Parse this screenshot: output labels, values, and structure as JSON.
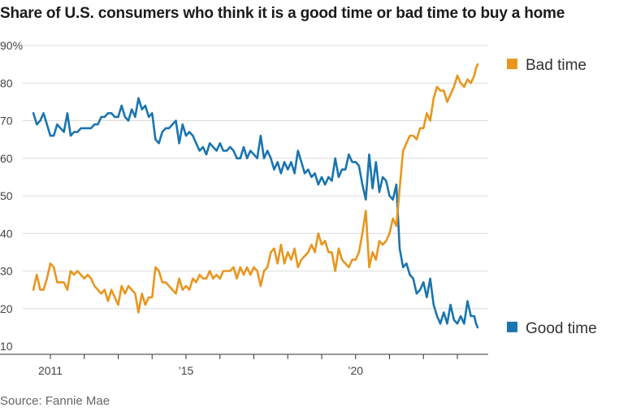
{
  "title": "Share of U.S. consumers who think it is a good time or bad time to buy a home",
  "source": "Source: Fannie Mae",
  "chart_data": {
    "type": "line",
    "x_range": [
      2010.0,
      2023.667
    ],
    "ylim": [
      10,
      90
    ],
    "grid": true,
    "legend": "right",
    "y_ticks": [
      {
        "value": 10,
        "label": "10"
      },
      {
        "value": 20,
        "label": "20"
      },
      {
        "value": 30,
        "label": "30"
      },
      {
        "value": 40,
        "label": "40"
      },
      {
        "value": 50,
        "label": "50"
      },
      {
        "value": 60,
        "label": "60"
      },
      {
        "value": 70,
        "label": "70"
      },
      {
        "value": 80,
        "label": "80"
      },
      {
        "value": 90,
        "label": "90%"
      }
    ],
    "x_ticks": [
      {
        "value": 2011,
        "label": "2011"
      },
      {
        "value": 2012,
        "label": ""
      },
      {
        "value": 2013,
        "label": ""
      },
      {
        "value": 2014,
        "label": ""
      },
      {
        "value": 2015,
        "label": "’15"
      },
      {
        "value": 2016,
        "label": ""
      },
      {
        "value": 2017,
        "label": ""
      },
      {
        "value": 2018,
        "label": ""
      },
      {
        "value": 2019,
        "label": ""
      },
      {
        "value": 2020,
        "label": "’20"
      },
      {
        "value": 2021,
        "label": ""
      },
      {
        "value": 2022,
        "label": ""
      },
      {
        "value": 2023,
        "label": ""
      }
    ],
    "series": [
      {
        "name": "Good time",
        "color": "#1a75b0",
        "points": [
          [
            2010.5,
            72
          ],
          [
            2010.6,
            69
          ],
          [
            2010.7,
            70
          ],
          [
            2010.8,
            72
          ],
          [
            2010.9,
            69
          ],
          [
            2011.0,
            66
          ],
          [
            2011.1,
            66
          ],
          [
            2011.2,
            69
          ],
          [
            2011.3,
            68
          ],
          [
            2011.4,
            67
          ],
          [
            2011.5,
            72
          ],
          [
            2011.6,
            66
          ],
          [
            2011.7,
            67
          ],
          [
            2011.8,
            67
          ],
          [
            2011.9,
            68
          ],
          [
            2012.0,
            68
          ],
          [
            2012.1,
            68
          ],
          [
            2012.2,
            68
          ],
          [
            2012.3,
            69
          ],
          [
            2012.4,
            69
          ],
          [
            2012.5,
            71
          ],
          [
            2012.6,
            71
          ],
          [
            2012.7,
            72
          ],
          [
            2012.8,
            72
          ],
          [
            2012.9,
            71
          ],
          [
            2013.0,
            71
          ],
          [
            2013.1,
            74
          ],
          [
            2013.2,
            71
          ],
          [
            2013.3,
            70
          ],
          [
            2013.4,
            73
          ],
          [
            2013.5,
            71
          ],
          [
            2013.6,
            76
          ],
          [
            2013.7,
            73
          ],
          [
            2013.8,
            74
          ],
          [
            2013.9,
            71
          ],
          [
            2014.0,
            72
          ],
          [
            2014.1,
            65
          ],
          [
            2014.2,
            64
          ],
          [
            2014.3,
            67
          ],
          [
            2014.4,
            68
          ],
          [
            2014.5,
            68
          ],
          [
            2014.6,
            69
          ],
          [
            2014.7,
            70
          ],
          [
            2014.8,
            64
          ],
          [
            2014.9,
            69
          ],
          [
            2015.0,
            66
          ],
          [
            2015.1,
            67
          ],
          [
            2015.2,
            66
          ],
          [
            2015.3,
            64
          ],
          [
            2015.4,
            62
          ],
          [
            2015.5,
            63
          ],
          [
            2015.6,
            61
          ],
          [
            2015.7,
            64
          ],
          [
            2015.8,
            63
          ],
          [
            2015.9,
            62
          ],
          [
            2016.0,
            64
          ],
          [
            2016.1,
            62
          ],
          [
            2016.2,
            62
          ],
          [
            2016.3,
            63
          ],
          [
            2016.4,
            62
          ],
          [
            2016.5,
            60
          ],
          [
            2016.6,
            60
          ],
          [
            2016.7,
            63
          ],
          [
            2016.8,
            60
          ],
          [
            2016.9,
            62
          ],
          [
            2017.0,
            61
          ],
          [
            2017.1,
            60
          ],
          [
            2017.2,
            66
          ],
          [
            2017.3,
            60
          ],
          [
            2017.4,
            62
          ],
          [
            2017.5,
            60
          ],
          [
            2017.6,
            57
          ],
          [
            2017.7,
            59
          ],
          [
            2017.8,
            56
          ],
          [
            2017.9,
            59
          ],
          [
            2018.0,
            57
          ],
          [
            2018.1,
            59
          ],
          [
            2018.2,
            56
          ],
          [
            2018.3,
            62
          ],
          [
            2018.4,
            59
          ],
          [
            2018.5,
            56
          ],
          [
            2018.6,
            57
          ],
          [
            2018.7,
            55
          ],
          [
            2018.8,
            56
          ],
          [
            2018.9,
            53
          ],
          [
            2019.0,
            55
          ],
          [
            2019.1,
            53
          ],
          [
            2019.2,
            55
          ],
          [
            2019.3,
            54
          ],
          [
            2019.4,
            60
          ],
          [
            2019.5,
            55
          ],
          [
            2019.6,
            57
          ],
          [
            2019.7,
            57
          ],
          [
            2019.8,
            61
          ],
          [
            2019.9,
            59
          ],
          [
            2020.0,
            59
          ],
          [
            2020.1,
            58
          ],
          [
            2020.2,
            53
          ],
          [
            2020.3,
            49
          ],
          [
            2020.4,
            61
          ],
          [
            2020.5,
            52
          ],
          [
            2020.6,
            59
          ],
          [
            2020.7,
            51
          ],
          [
            2020.8,
            55
          ],
          [
            2020.9,
            54
          ],
          [
            2021.0,
            50
          ],
          [
            2021.1,
            49
          ],
          [
            2021.2,
            53
          ],
          [
            2021.3,
            36
          ],
          [
            2021.4,
            31
          ],
          [
            2021.5,
            32
          ],
          [
            2021.6,
            29
          ],
          [
            2021.7,
            28
          ],
          [
            2021.8,
            24
          ],
          [
            2021.9,
            25
          ],
          [
            2022.0,
            27
          ],
          [
            2022.1,
            23
          ],
          [
            2022.2,
            28
          ],
          [
            2022.3,
            21
          ],
          [
            2022.4,
            18
          ],
          [
            2022.5,
            16
          ],
          [
            2022.6,
            19
          ],
          [
            2022.7,
            16
          ],
          [
            2022.8,
            21
          ],
          [
            2022.9,
            17
          ],
          [
            2023.0,
            16
          ],
          [
            2023.1,
            18
          ],
          [
            2023.2,
            16
          ],
          [
            2023.3,
            22
          ],
          [
            2023.4,
            18
          ],
          [
            2023.5,
            18
          ],
          [
            2023.55,
            16
          ],
          [
            2023.6,
            15
          ]
        ]
      },
      {
        "name": "Bad time",
        "color": "#e8961e",
        "points": [
          [
            2010.5,
            25
          ],
          [
            2010.6,
            29
          ],
          [
            2010.7,
            25
          ],
          [
            2010.8,
            25
          ],
          [
            2010.9,
            28
          ],
          [
            2011.0,
            32
          ],
          [
            2011.1,
            31
          ],
          [
            2011.2,
            27
          ],
          [
            2011.3,
            27
          ],
          [
            2011.4,
            27
          ],
          [
            2011.5,
            25
          ],
          [
            2011.6,
            30
          ],
          [
            2011.7,
            29
          ],
          [
            2011.8,
            30
          ],
          [
            2011.9,
            29
          ],
          [
            2012.0,
            28
          ],
          [
            2012.1,
            29
          ],
          [
            2012.2,
            28
          ],
          [
            2012.3,
            26
          ],
          [
            2012.4,
            25
          ],
          [
            2012.5,
            24
          ],
          [
            2012.6,
            25
          ],
          [
            2012.7,
            22
          ],
          [
            2012.8,
            25
          ],
          [
            2012.9,
            23
          ],
          [
            2013.0,
            21
          ],
          [
            2013.1,
            26
          ],
          [
            2013.2,
            24
          ],
          [
            2013.3,
            26
          ],
          [
            2013.4,
            25
          ],
          [
            2013.5,
            24
          ],
          [
            2013.6,
            19
          ],
          [
            2013.7,
            24
          ],
          [
            2013.8,
            21
          ],
          [
            2013.9,
            23
          ],
          [
            2014.0,
            23
          ],
          [
            2014.1,
            31
          ],
          [
            2014.2,
            30
          ],
          [
            2014.3,
            27
          ],
          [
            2014.4,
            27
          ],
          [
            2014.5,
            26
          ],
          [
            2014.6,
            25
          ],
          [
            2014.7,
            24
          ],
          [
            2014.8,
            28
          ],
          [
            2014.9,
            25
          ],
          [
            2015.0,
            26
          ],
          [
            2015.1,
            25
          ],
          [
            2015.2,
            28
          ],
          [
            2015.3,
            27
          ],
          [
            2015.4,
            29
          ],
          [
            2015.5,
            28
          ],
          [
            2015.6,
            28
          ],
          [
            2015.7,
            30
          ],
          [
            2015.8,
            28
          ],
          [
            2015.9,
            29
          ],
          [
            2016.0,
            28
          ],
          [
            2016.1,
            30
          ],
          [
            2016.2,
            30
          ],
          [
            2016.3,
            30
          ],
          [
            2016.4,
            31
          ],
          [
            2016.5,
            28
          ],
          [
            2016.6,
            31
          ],
          [
            2016.7,
            29
          ],
          [
            2016.8,
            31
          ],
          [
            2016.9,
            29
          ],
          [
            2017.0,
            31
          ],
          [
            2017.1,
            30
          ],
          [
            2017.2,
            26
          ],
          [
            2017.3,
            30
          ],
          [
            2017.4,
            31
          ],
          [
            2017.5,
            35
          ],
          [
            2017.6,
            36
          ],
          [
            2017.7,
            32
          ],
          [
            2017.8,
            37
          ],
          [
            2017.9,
            32
          ],
          [
            2018.0,
            35
          ],
          [
            2018.1,
            33
          ],
          [
            2018.2,
            36
          ],
          [
            2018.3,
            31
          ],
          [
            2018.4,
            33
          ],
          [
            2018.5,
            34
          ],
          [
            2018.6,
            35
          ],
          [
            2018.7,
            37
          ],
          [
            2018.8,
            35
          ],
          [
            2018.9,
            40
          ],
          [
            2019.0,
            37
          ],
          [
            2019.1,
            38
          ],
          [
            2019.2,
            35
          ],
          [
            2019.3,
            35
          ],
          [
            2019.4,
            30
          ],
          [
            2019.5,
            36
          ],
          [
            2019.6,
            33
          ],
          [
            2019.7,
            32
          ],
          [
            2019.8,
            31
          ],
          [
            2019.9,
            33
          ],
          [
            2020.0,
            33
          ],
          [
            2020.1,
            35
          ],
          [
            2020.2,
            40
          ],
          [
            2020.3,
            46
          ],
          [
            2020.4,
            31
          ],
          [
            2020.5,
            35
          ],
          [
            2020.6,
            33
          ],
          [
            2020.7,
            38
          ],
          [
            2020.8,
            37
          ],
          [
            2020.9,
            38
          ],
          [
            2021.0,
            40
          ],
          [
            2021.1,
            44
          ],
          [
            2021.2,
            42
          ],
          [
            2021.3,
            52
          ],
          [
            2021.4,
            62
          ],
          [
            2021.5,
            64
          ],
          [
            2021.6,
            66
          ],
          [
            2021.7,
            66
          ],
          [
            2021.8,
            65
          ],
          [
            2021.9,
            68
          ],
          [
            2022.0,
            68
          ],
          [
            2022.1,
            72
          ],
          [
            2022.2,
            70
          ],
          [
            2022.3,
            76
          ],
          [
            2022.4,
            79
          ],
          [
            2022.5,
            78
          ],
          [
            2022.6,
            78
          ],
          [
            2022.7,
            75
          ],
          [
            2022.8,
            77
          ],
          [
            2022.9,
            79
          ],
          [
            2023.0,
            82
          ],
          [
            2023.1,
            80
          ],
          [
            2023.2,
            79
          ],
          [
            2023.3,
            81
          ],
          [
            2023.4,
            80
          ],
          [
            2023.5,
            82
          ],
          [
            2023.55,
            84
          ],
          [
            2023.6,
            85
          ]
        ]
      }
    ]
  }
}
